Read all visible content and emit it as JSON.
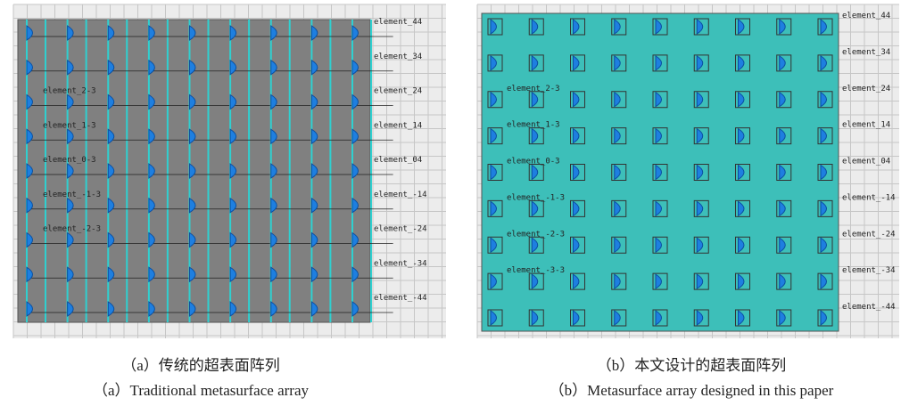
{
  "figure": {
    "panel_a": {
      "caption_zh": "（a）传统的超表面阵列",
      "caption_en": "（a）Traditional metasurface array",
      "element_labels": [
        "element_44",
        "element_34",
        "element_24",
        "element_14",
        "element_04",
        "element_-14",
        "element_-24",
        "element_-34",
        "element_-44"
      ],
      "inner_labels": [
        "element_2-3",
        "element_1-3",
        "element_0-3",
        "element_-1-3",
        "element_-2-3"
      ]
    },
    "panel_b": {
      "caption_zh": "（b）本文设计的超表面阵列",
      "caption_en": "（b）Metasurface array designed in this paper",
      "element_labels": [
        "element_44",
        "element_34",
        "element_24",
        "element_14",
        "element_04",
        "element_-14",
        "element_-24",
        "element_-34",
        "element_-44"
      ],
      "inner_labels": [
        "element_2-3",
        "element_1-3",
        "element_0-3",
        "element_-1-3",
        "element_-2-3",
        "element_-3-3"
      ]
    }
  }
}
